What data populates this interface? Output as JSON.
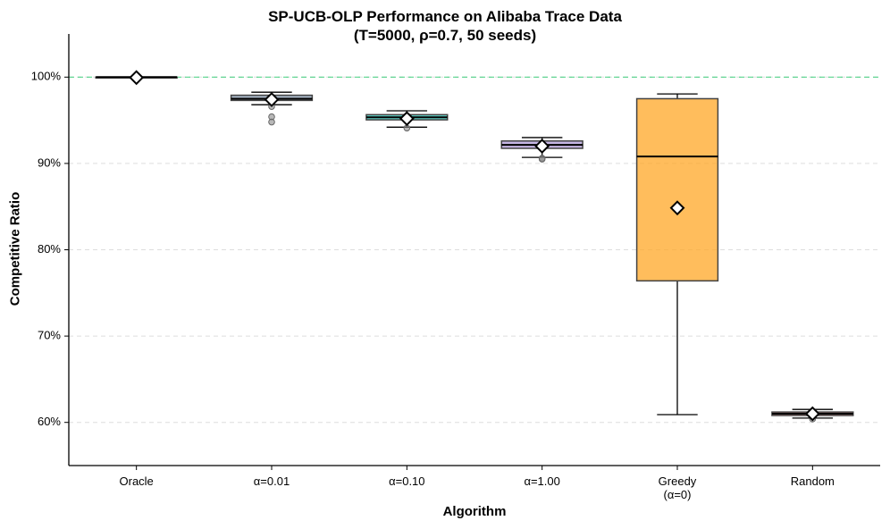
{
  "chart_data": {
    "type": "box",
    "title": "SP-UCB-OLP Performance on Alibaba Trace Data\n(T=5000, ρ=0.7, 50 seeds)",
    "x_label": "Algorithm",
    "y_label": "Competitive Ratio",
    "categories": [
      "Oracle",
      "α=0.01",
      "α=0.10",
      "α=1.00",
      "Greedy\n(α=0)",
      "Random"
    ],
    "colors": [
      "#333333",
      "#8a9bb0",
      "#2ec4b6",
      "#b39ddb",
      "#ffa726",
      "#e57373"
    ],
    "boxes": [
      {
        "whislo": 99.9,
        "q1": 99.9,
        "median": 100,
        "q3": 100,
        "whishi": 100,
        "mean": 99.95,
        "fliers": []
      },
      {
        "whislo": 96.8,
        "q1": 97.3,
        "median": 97.5,
        "q3": 97.9,
        "whishi": 98.25,
        "mean": 97.4,
        "fliers": [
          96.6,
          95.4,
          94.8
        ]
      },
      {
        "whislo": 94.2,
        "q1": 95.05,
        "median": 95.35,
        "q3": 95.65,
        "whishi": 96.1,
        "mean": 95.2,
        "fliers": [
          94.1
        ]
      },
      {
        "whislo": 90.7,
        "q1": 91.75,
        "median": 92.15,
        "q3": 92.6,
        "whishi": 93.0,
        "mean": 92.0,
        "fliers": [
          90.6,
          90.5
        ]
      },
      {
        "whislo": 60.9,
        "q1": 76.4,
        "median": 90.8,
        "q3": 97.5,
        "whishi": 98.05,
        "mean": 84.85,
        "fliers": []
      },
      {
        "whislo": 60.5,
        "q1": 60.8,
        "median": 61.0,
        "q3": 61.2,
        "whishi": 61.5,
        "mean": 61.0,
        "fliers": [
          60.4
        ]
      }
    ],
    "reference_line": 100,
    "reference_color": "#2ecc71",
    "ylim": [
      55,
      105
    ],
    "yticks": [
      {
        "value": 60,
        "label": "60%"
      },
      {
        "value": 70,
        "label": "70%"
      },
      {
        "value": 80,
        "label": "80%"
      },
      {
        "value": 90,
        "label": "90%"
      },
      {
        "value": 100,
        "label": "100%"
      }
    ],
    "grid": true
  }
}
